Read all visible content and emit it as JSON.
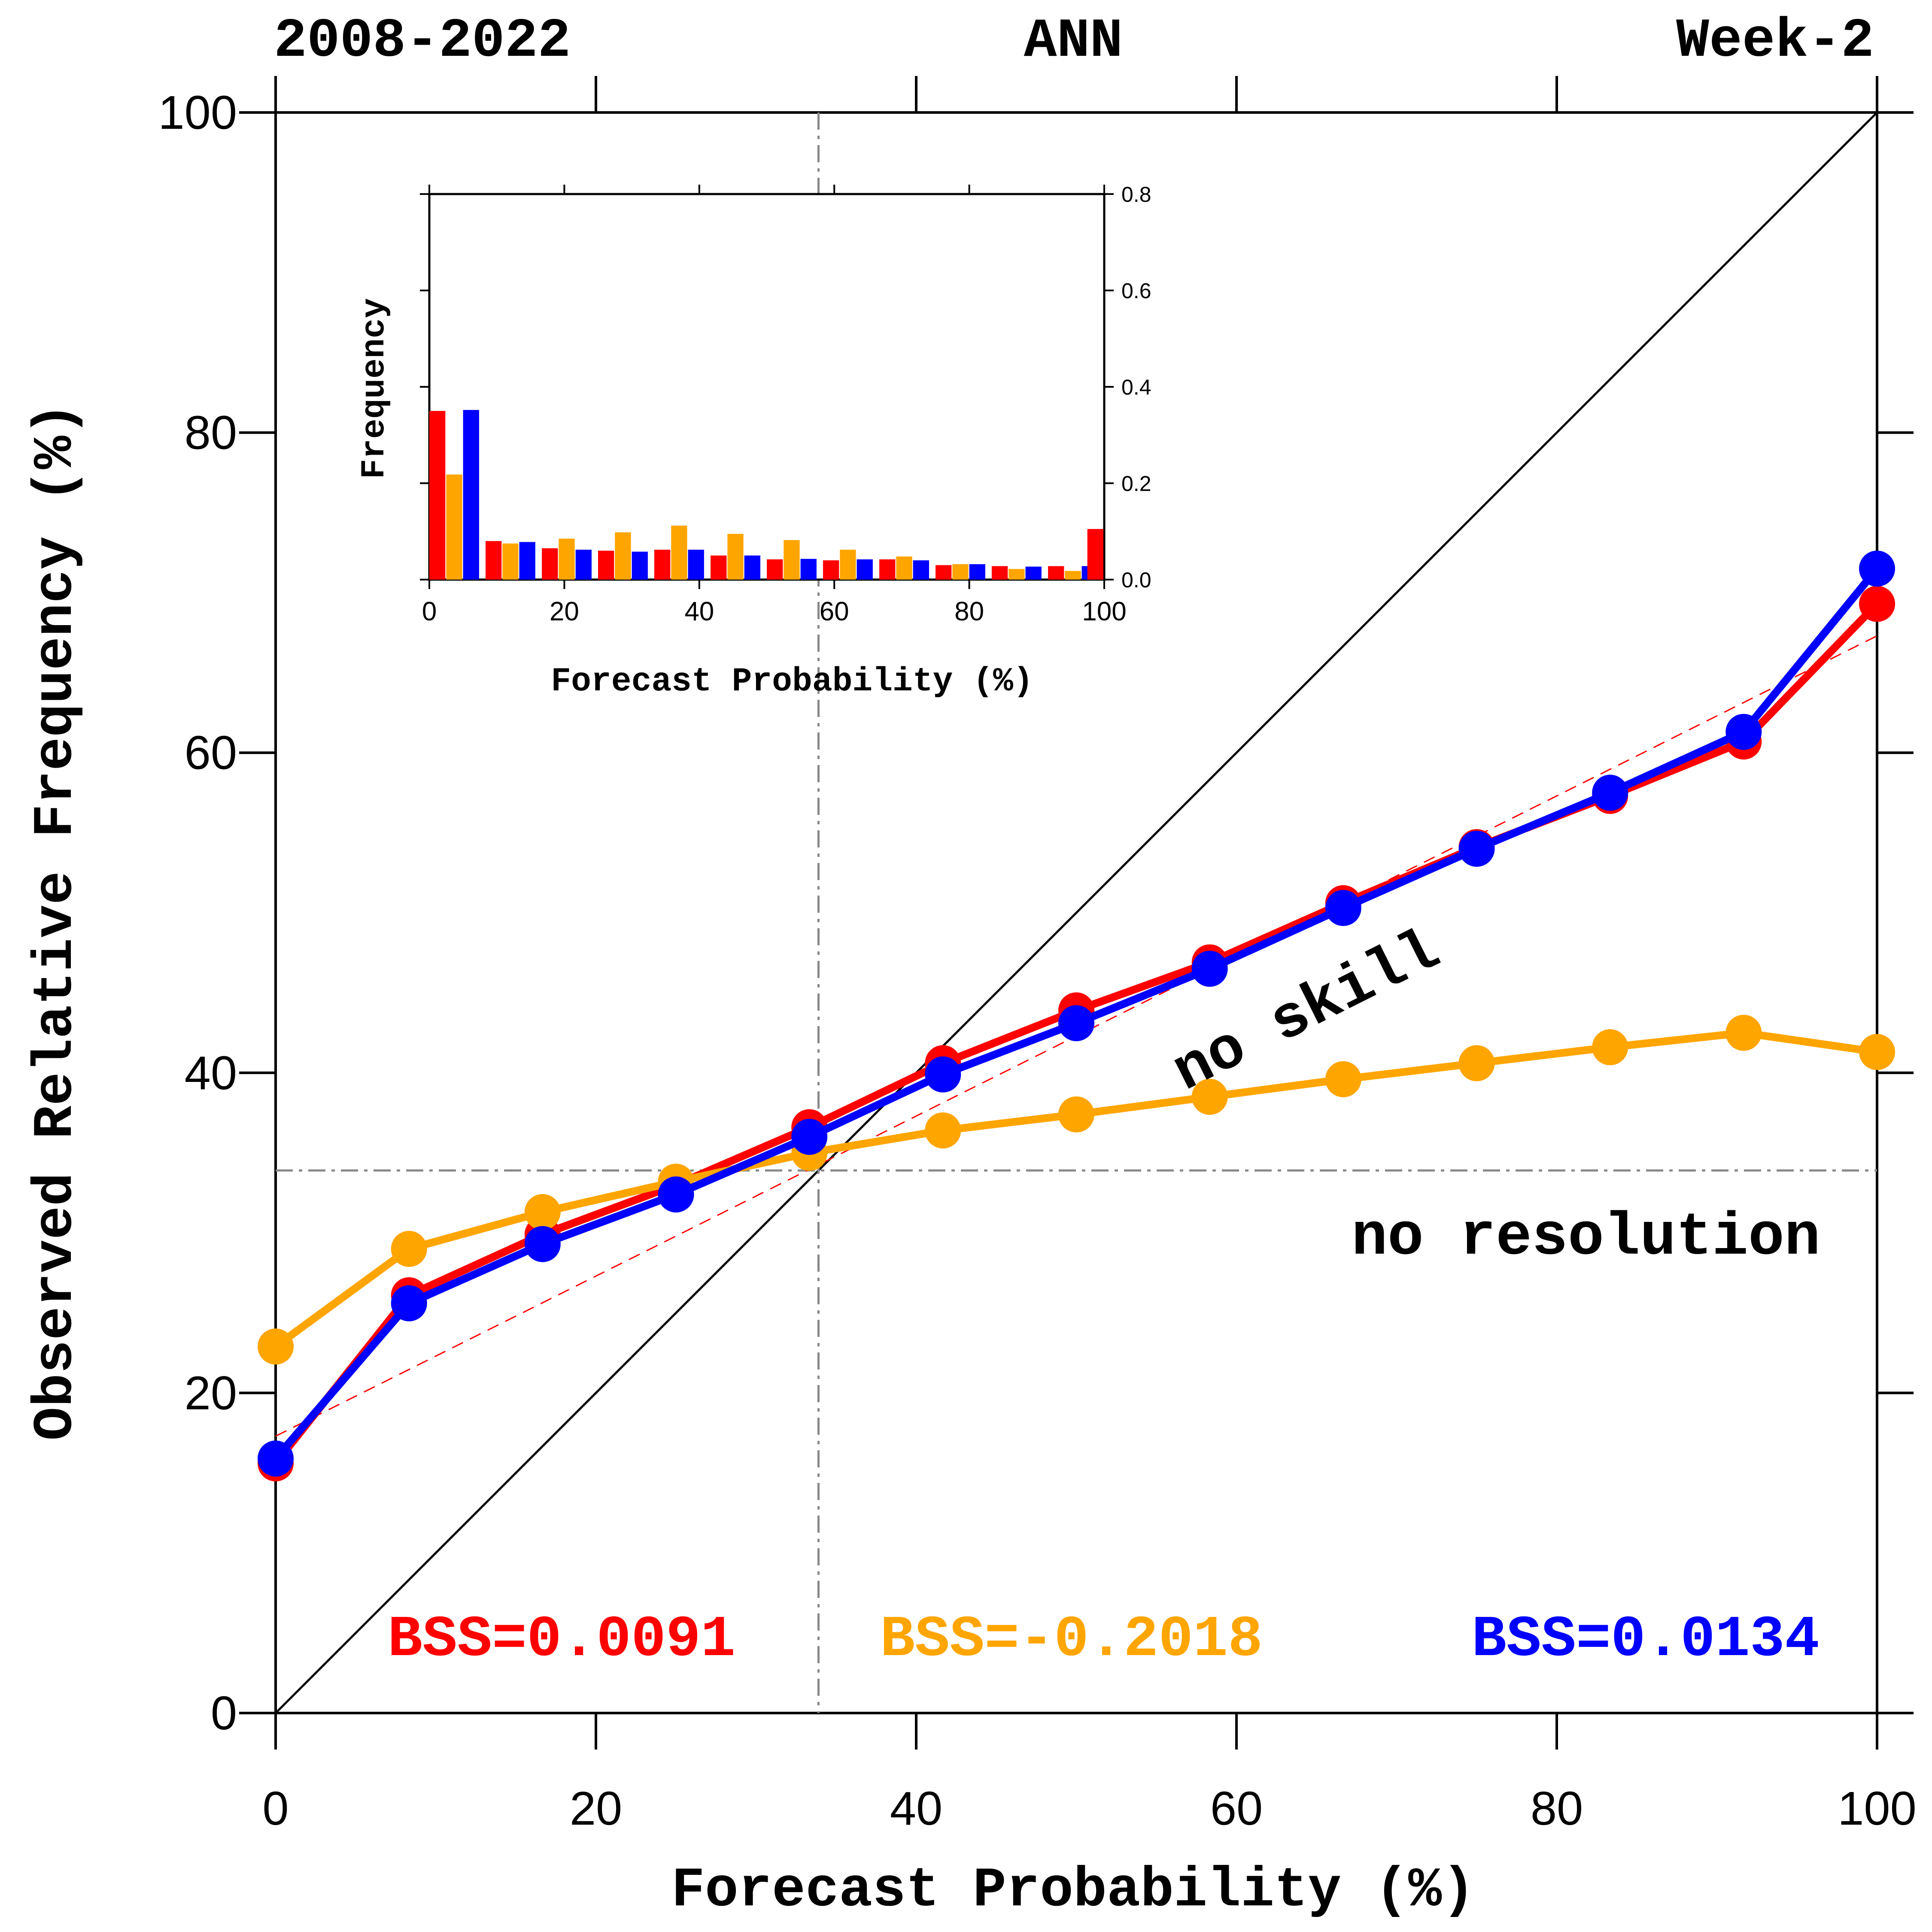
{
  "header": {
    "left": "2008-2022",
    "center": "ANN",
    "right": "Week-2"
  },
  "chart_data": [
    {
      "type": "line",
      "xlabel": "Forecast Probability (%)",
      "ylabel": "Observed Relative Frequency (%)",
      "xlim": [
        0,
        100
      ],
      "ylim": [
        0,
        100
      ],
      "xticks": [
        0,
        20,
        40,
        60,
        80,
        100
      ],
      "yticks": [
        0,
        20,
        40,
        60,
        80,
        100
      ],
      "x": [
        0,
        8.33,
        16.67,
        25,
        33.33,
        41.67,
        50,
        58.33,
        66.67,
        75,
        83.33,
        91.67,
        100
      ],
      "series": [
        {
          "color": "#ff0000",
          "values": [
            15.6,
            26.1,
            29.9,
            33.0,
            36.6,
            40.6,
            43.9,
            46.9,
            50.6,
            54.1,
            57.3,
            60.7,
            69.3
          ]
        },
        {
          "color": "#ffa500",
          "values": [
            22.9,
            29.0,
            31.3,
            33.2,
            35.0,
            36.4,
            37.4,
            38.5,
            39.6,
            40.6,
            41.6,
            42.5,
            41.3
          ]
        },
        {
          "color": "#0000ff",
          "values": [
            15.9,
            25.6,
            29.3,
            32.4,
            36.0,
            39.9,
            43.1,
            46.5,
            50.3,
            54.0,
            57.5,
            61.3,
            71.5
          ]
        }
      ],
      "reference_lines": {
        "perfect_reliability": {
          "x": [
            0,
            100
          ],
          "y": [
            0,
            100
          ],
          "color": "#000000"
        },
        "climatology_x": 33.9,
        "climatology_y": 33.9,
        "fit_line": {
          "x": [
            0,
            100
          ],
          "y": [
            17.3,
            67.3
          ],
          "color": "#ff0000"
        }
      },
      "annotations": {
        "no_skill": "no skill",
        "no_resolution": "no resolution"
      },
      "bss": [
        {
          "label": "BSS=0.0091",
          "color": "#ff0000"
        },
        {
          "label": "BSS=-0.2018",
          "color": "#ffa500"
        },
        {
          "label": "BSS=0.0134",
          "color": "#0000ff"
        }
      ]
    },
    {
      "type": "bar",
      "xlabel": "Forecast Probability (%)",
      "ylabel": "Frequency",
      "xlim": [
        0,
        100
      ],
      "ylim": [
        0,
        0.8
      ],
      "xticks": [
        0,
        20,
        40,
        60,
        80,
        100
      ],
      "yticks": [
        0.0,
        0.2,
        0.4,
        0.6,
        0.8
      ],
      "ytick_labels": [
        "0.0",
        "0.2",
        "0.4",
        "0.6",
        "0.8"
      ],
      "x": [
        0,
        8.33,
        16.67,
        25,
        33.33,
        41.67,
        50,
        58.33,
        66.67,
        75,
        83.33,
        91.67,
        100
      ],
      "series": [
        {
          "color": "#ff0000",
          "values": [
            0.35,
            0.08,
            0.065,
            0.06,
            0.062,
            0.05,
            0.042,
            0.04,
            0.042,
            0.03,
            0.028,
            0.028,
            0.105
          ]
        },
        {
          "color": "#ffa500",
          "values": [
            0.218,
            0.075,
            0.085,
            0.098,
            0.112,
            0.095,
            0.082,
            0.062,
            0.048,
            0.032,
            0.022,
            0.018,
            0
          ]
        },
        {
          "color": "#0000ff",
          "values": [
            0.352,
            0.078,
            0.062,
            0.058,
            0.062,
            0.05,
            0.043,
            0.042,
            0.04,
            0.032,
            0.027,
            0.028,
            0
          ]
        }
      ]
    }
  ]
}
